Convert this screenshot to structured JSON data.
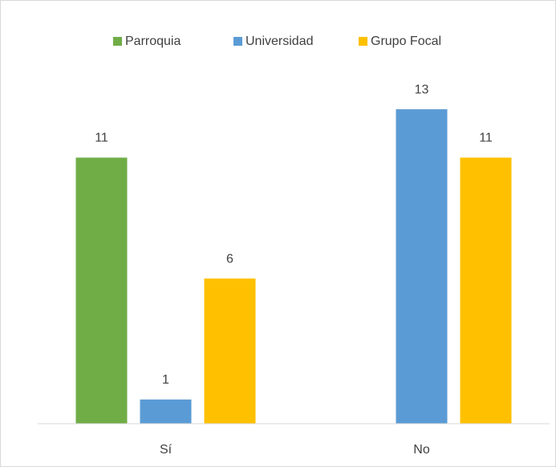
{
  "chart_data": {
    "type": "bar",
    "categories": [
      "Sí",
      "No"
    ],
    "series": [
      {
        "name": "Parroquia",
        "color": "#70ad47",
        "values": [
          11,
          null
        ]
      },
      {
        "name": "Universidad",
        "color": "#5b9bd5",
        "values": [
          1,
          13
        ]
      },
      {
        "name": "Grupo Focal",
        "color": "#ffc000",
        "values": [
          6,
          11
        ]
      }
    ],
    "ylim": [
      0,
      14
    ],
    "legend": "top"
  }
}
